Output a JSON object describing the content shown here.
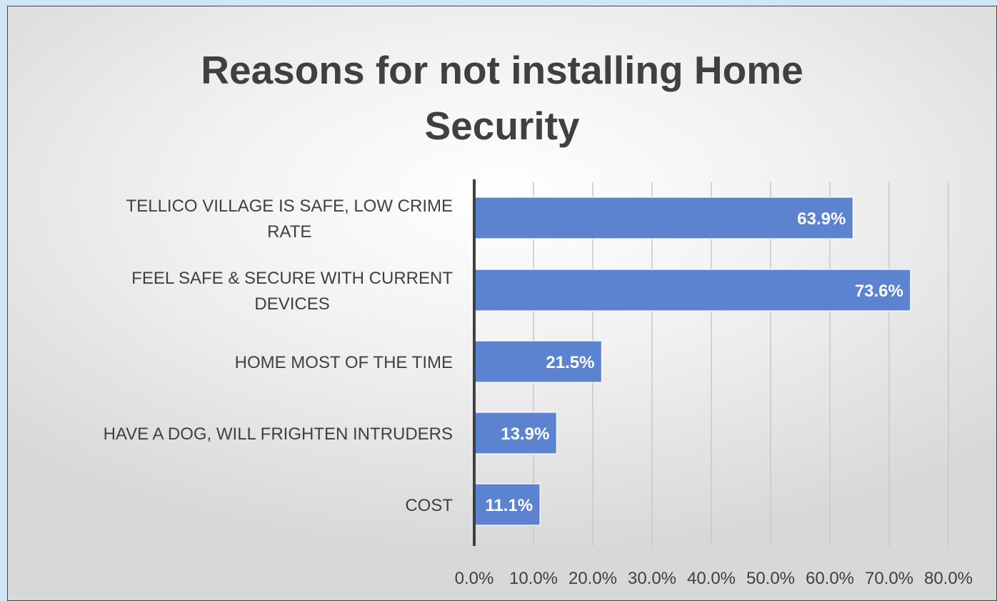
{
  "chart_data": {
    "type": "bar",
    "orientation": "horizontal",
    "title_lines": [
      "Reasons for not installing Home",
      "Security"
    ],
    "categories": [
      [
        "TELLICO VILLAGE IS SAFE, LOW CRIME",
        "RATE"
      ],
      [
        "FEEL SAFE & SECURE WITH CURRENT",
        "DEVICES"
      ],
      [
        "HOME MOST OF THE TIME"
      ],
      [
        "HAVE A DOG, WILL FRIGHTEN INTRUDERS"
      ],
      [
        "COST"
      ]
    ],
    "values": [
      63.9,
      73.6,
      21.5,
      13.9,
      11.1
    ],
    "data_labels": [
      "63.9%",
      "73.6%",
      "21.5%",
      "13.9%",
      "11.1%"
    ],
    "xlim": [
      0,
      80
    ],
    "x_ticks": [
      "0.0%",
      "10.0%",
      "20.0%",
      "30.0%",
      "40.0%",
      "50.0%",
      "60.0%",
      "70.0%",
      "80.0%"
    ],
    "xlabel": "",
    "ylabel": "",
    "grid": "vertical",
    "legend": "none",
    "bar_color": "#5b83cf",
    "axis_color": "#404040",
    "gridline_color": "#c8c8c8",
    "text_color": "#404040"
  }
}
